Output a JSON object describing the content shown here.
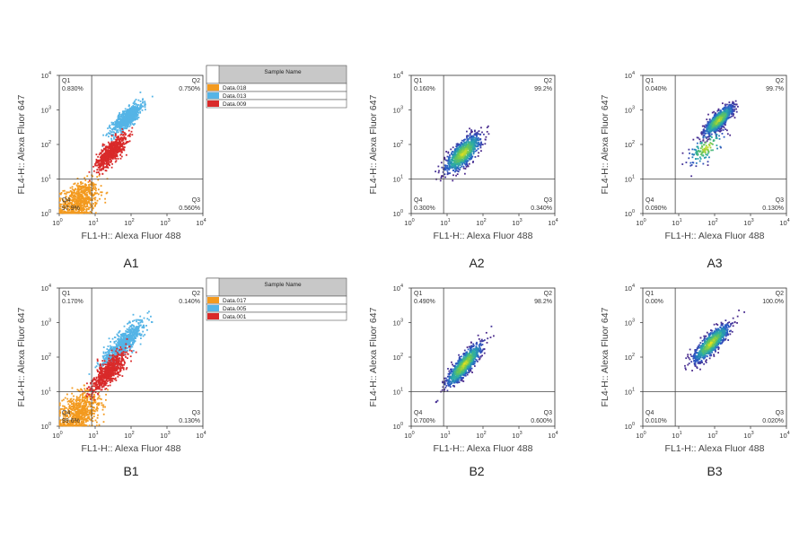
{
  "chart_data": [
    {
      "id": "A1",
      "type": "scatter",
      "panel_label": "A1",
      "xlabel": "FL1-H:: Alexa Fluor 488",
      "ylabel": "FL4-H:: Alexa Fluor 647",
      "x_scale": "log",
      "y_scale": "log",
      "xlim": [
        1,
        10000
      ],
      "ylim": [
        1,
        10000
      ],
      "x_ticks": [
        {
          "base": "10",
          "exp": "0"
        },
        {
          "base": "10",
          "exp": "1"
        },
        {
          "base": "10",
          "exp": "2"
        },
        {
          "base": "10",
          "exp": "3"
        },
        {
          "base": "10",
          "exp": "4"
        }
      ],
      "y_ticks": [
        {
          "base": "10",
          "exp": "0"
        },
        {
          "base": "10",
          "exp": "1"
        },
        {
          "base": "10",
          "exp": "2"
        },
        {
          "base": "10",
          "exp": "3"
        },
        {
          "base": "10",
          "exp": "4"
        }
      ],
      "gate": {
        "x": 8,
        "y": 10
      },
      "quadrants": [
        {
          "name": "Q1",
          "value": "0.830%"
        },
        {
          "name": "Q2",
          "value": "0.750%"
        },
        {
          "name": "Q3",
          "value": "0.560%"
        },
        {
          "name": "Q4",
          "value": "97.9%"
        }
      ],
      "style": "overlay",
      "legend": {
        "header": "Sample Name",
        "entries": [
          {
            "label": "Data.018",
            "color": "#f39a1f"
          },
          {
            "label": "Data.013",
            "color": "#55b4e6"
          },
          {
            "label": "Data.009",
            "color": "#d92a2a"
          }
        ]
      },
      "populations": [
        {
          "color": "#f39a1f",
          "center": [
            3.5,
            2.2
          ],
          "spread": [
            0.22,
            0.24
          ],
          "corr": 0.35
        },
        {
          "color": "#55b4e6",
          "center": [
            80,
            600
          ],
          "spread": [
            0.18,
            0.18
          ],
          "corr": 0.8
        },
        {
          "color": "#d92a2a",
          "center": [
            28,
            60
          ],
          "spread": [
            0.17,
            0.2
          ],
          "corr": 0.75
        }
      ]
    },
    {
      "id": "A2",
      "type": "scatter",
      "panel_label": "A2",
      "xlabel": "FL1-H:: Alexa Fluor 488",
      "ylabel": "FL4-H:: Alexa Fluor 647",
      "x_scale": "log",
      "y_scale": "log",
      "xlim": [
        1,
        10000
      ],
      "ylim": [
        1,
        10000
      ],
      "x_ticks": [
        {
          "base": "10",
          "exp": "0"
        },
        {
          "base": "10",
          "exp": "1"
        },
        {
          "base": "10",
          "exp": "2"
        },
        {
          "base": "10",
          "exp": "3"
        },
        {
          "base": "10",
          "exp": "4"
        }
      ],
      "y_ticks": [
        {
          "base": "10",
          "exp": "0"
        },
        {
          "base": "10",
          "exp": "1"
        },
        {
          "base": "10",
          "exp": "2"
        },
        {
          "base": "10",
          "exp": "3"
        },
        {
          "base": "10",
          "exp": "4"
        }
      ],
      "gate": {
        "x": 8,
        "y": 10
      },
      "quadrants": [
        {
          "name": "Q1",
          "value": "0.160%"
        },
        {
          "name": "Q2",
          "value": "99.2%"
        },
        {
          "name": "Q3",
          "value": "0.340%"
        },
        {
          "name": "Q4",
          "value": "0.300%"
        }
      ],
      "style": "density",
      "populations": [
        {
          "center": [
            28,
            55
          ],
          "spread": [
            0.2,
            0.22
          ],
          "corr": 0.72
        }
      ]
    },
    {
      "id": "A3",
      "type": "scatter",
      "panel_label": "A3",
      "xlabel": "FL1-H:: Alexa Fluor 488",
      "ylabel": "FL4-H:: Alexa Fluor 647",
      "x_scale": "log",
      "y_scale": "log",
      "xlim": [
        1,
        10000
      ],
      "ylim": [
        1,
        10000
      ],
      "x_ticks": [
        {
          "base": "10",
          "exp": "0"
        },
        {
          "base": "10",
          "exp": "1"
        },
        {
          "base": "10",
          "exp": "2"
        },
        {
          "base": "10",
          "exp": "3"
        },
        {
          "base": "10",
          "exp": "4"
        }
      ],
      "y_ticks": [
        {
          "base": "10",
          "exp": "0"
        },
        {
          "base": "10",
          "exp": "1"
        },
        {
          "base": "10",
          "exp": "2"
        },
        {
          "base": "10",
          "exp": "3"
        },
        {
          "base": "10",
          "exp": "4"
        }
      ],
      "gate": {
        "x": 8,
        "y": 10
      },
      "quadrants": [
        {
          "name": "Q1",
          "value": "0.040%"
        },
        {
          "name": "Q2",
          "value": "99.7%"
        },
        {
          "name": "Q3",
          "value": "0.130%"
        },
        {
          "name": "Q4",
          "value": "0.090%"
        }
      ],
      "style": "density",
      "populations": [
        {
          "center": [
            130,
            500
          ],
          "spread": [
            0.16,
            0.17
          ],
          "corr": 0.8
        },
        {
          "center": [
            60,
            80
          ],
          "spread": [
            0.2,
            0.2
          ],
          "corr": 0.6,
          "weight": 0.15
        }
      ]
    },
    {
      "id": "B1",
      "type": "scatter",
      "panel_label": "B1",
      "xlabel": "FL1-H:: Alexa Fluor 488",
      "ylabel": "FL4-H:: Alexa Fluor 647",
      "x_scale": "log",
      "y_scale": "log",
      "xlim": [
        1,
        10000
      ],
      "ylim": [
        1,
        10000
      ],
      "x_ticks": [
        {
          "base": "10",
          "exp": "0"
        },
        {
          "base": "10",
          "exp": "1"
        },
        {
          "base": "10",
          "exp": "2"
        },
        {
          "base": "10",
          "exp": "3"
        },
        {
          "base": "10",
          "exp": "4"
        }
      ],
      "y_ticks": [
        {
          "base": "10",
          "exp": "0"
        },
        {
          "base": "10",
          "exp": "1"
        },
        {
          "base": "10",
          "exp": "2"
        },
        {
          "base": "10",
          "exp": "3"
        },
        {
          "base": "10",
          "exp": "4"
        }
      ],
      "gate": {
        "x": 8,
        "y": 10
      },
      "quadrants": [
        {
          "name": "Q1",
          "value": "0.170%"
        },
        {
          "name": "Q2",
          "value": "0.140%"
        },
        {
          "name": "Q3",
          "value": "0.130%"
        },
        {
          "name": "Q4",
          "value": "99.6%"
        }
      ],
      "style": "overlay",
      "legend": {
        "header": "Sample Name",
        "entries": [
          {
            "label": "Data.017",
            "color": "#f39a1f"
          },
          {
            "label": "Data.005",
            "color": "#55b4e6"
          },
          {
            "label": "Data.001",
            "color": "#d92a2a"
          }
        ]
      },
      "populations": [
        {
          "color": "#f39a1f",
          "center": [
            3.5,
            2.5
          ],
          "spread": [
            0.24,
            0.26
          ],
          "corr": 0.4
        },
        {
          "color": "#55b4e6",
          "center": [
            60,
            250
          ],
          "spread": [
            0.24,
            0.26
          ],
          "corr": 0.85
        },
        {
          "color": "#d92a2a",
          "center": [
            25,
            40
          ],
          "spread": [
            0.2,
            0.24
          ],
          "corr": 0.8
        }
      ]
    },
    {
      "id": "B2",
      "type": "scatter",
      "panel_label": "B2",
      "xlabel": "FL1-H:: Alexa Fluor 488",
      "ylabel": "FL4-H:: Alexa Fluor 647",
      "x_scale": "log",
      "y_scale": "log",
      "xlim": [
        1,
        10000
      ],
      "ylim": [
        1,
        10000
      ],
      "x_ticks": [
        {
          "base": "10",
          "exp": "0"
        },
        {
          "base": "10",
          "exp": "1"
        },
        {
          "base": "10",
          "exp": "2"
        },
        {
          "base": "10",
          "exp": "3"
        },
        {
          "base": "10",
          "exp": "4"
        }
      ],
      "y_ticks": [
        {
          "base": "10",
          "exp": "0"
        },
        {
          "base": "10",
          "exp": "1"
        },
        {
          "base": "10",
          "exp": "2"
        },
        {
          "base": "10",
          "exp": "3"
        },
        {
          "base": "10",
          "exp": "4"
        }
      ],
      "gate": {
        "x": 8,
        "y": 10
      },
      "quadrants": [
        {
          "name": "Q1",
          "value": "0.490%"
        },
        {
          "name": "Q2",
          "value": "98.2%"
        },
        {
          "name": "Q3",
          "value": "0.600%"
        },
        {
          "name": "Q4",
          "value": "0.700%"
        }
      ],
      "style": "density",
      "populations": [
        {
          "center": [
            30,
            60
          ],
          "spread": [
            0.2,
            0.25
          ],
          "corr": 0.85
        }
      ]
    },
    {
      "id": "B3",
      "type": "scatter",
      "panel_label": "B3",
      "xlabel": "FL1-H:: Alexa Fluor 488",
      "ylabel": "FL4-H:: Alexa Fluor 647",
      "x_scale": "log",
      "y_scale": "log",
      "xlim": [
        1,
        10000
      ],
      "ylim": [
        1,
        10000
      ],
      "x_ticks": [
        {
          "base": "10",
          "exp": "0"
        },
        {
          "base": "10",
          "exp": "1"
        },
        {
          "base": "10",
          "exp": "2"
        },
        {
          "base": "10",
          "exp": "3"
        },
        {
          "base": "10",
          "exp": "4"
        }
      ],
      "y_ticks": [
        {
          "base": "10",
          "exp": "0"
        },
        {
          "base": "10",
          "exp": "1"
        },
        {
          "base": "10",
          "exp": "2"
        },
        {
          "base": "10",
          "exp": "3"
        },
        {
          "base": "10",
          "exp": "4"
        }
      ],
      "gate": {
        "x": 8,
        "y": 10
      },
      "quadrants": [
        {
          "name": "Q1",
          "value": "0.00%"
        },
        {
          "name": "Q2",
          "value": "100.0%"
        },
        {
          "name": "Q3",
          "value": "0.020%"
        },
        {
          "name": "Q4",
          "value": "0.010%"
        }
      ],
      "style": "density",
      "populations": [
        {
          "center": [
            80,
            250
          ],
          "spread": [
            0.2,
            0.22
          ],
          "corr": 0.82
        }
      ]
    }
  ],
  "colors": {
    "axis": "#333333",
    "gate_line": "#444444",
    "density_low": "#4b2a8c",
    "density_high": "#f5e31a"
  }
}
